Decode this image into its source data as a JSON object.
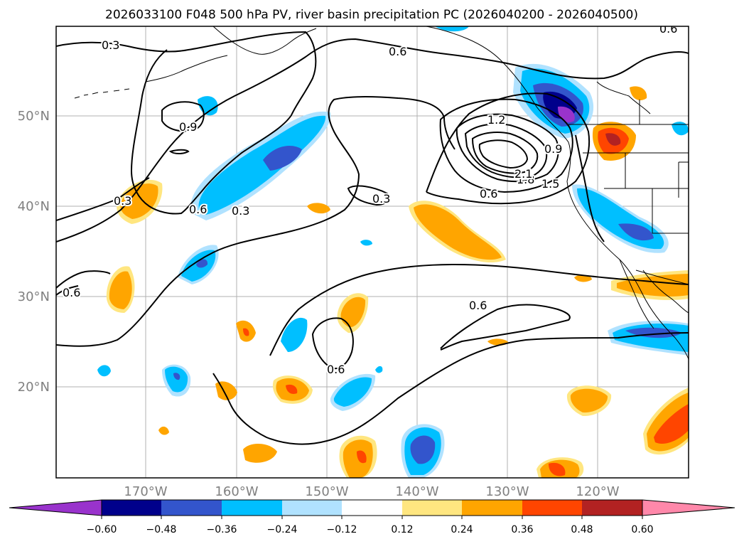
{
  "title": "2026033100 F048 500 hPa PV, river basin precipitation PC (2026040200 - 2026040500)",
  "axes": {
    "lon_ticks": [
      "170°W",
      "160°W",
      "150°W",
      "140°W",
      "130°W",
      "120°W"
    ],
    "lat_ticks": [
      "50°N",
      "40°N",
      "30°N",
      "20°N"
    ]
  },
  "contour_labels": [
    "0.3",
    "0.6",
    "0.9",
    "1.2",
    "1.5",
    "1.8",
    "2.1"
  ],
  "colorbar": {
    "ticks": [
      "−0.60",
      "−0.48",
      "−0.36",
      "−0.24",
      "−0.12",
      "0.12",
      "0.24",
      "0.36",
      "0.48",
      "0.60"
    ],
    "colors": [
      "#9933cc",
      "#00008b",
      "#3355cc",
      "#00bfff",
      "#b0e2ff",
      "#ffffff",
      "#ffe680",
      "#ffa500",
      "#ff4500",
      "#b22222",
      "#ff88aa"
    ]
  }
}
